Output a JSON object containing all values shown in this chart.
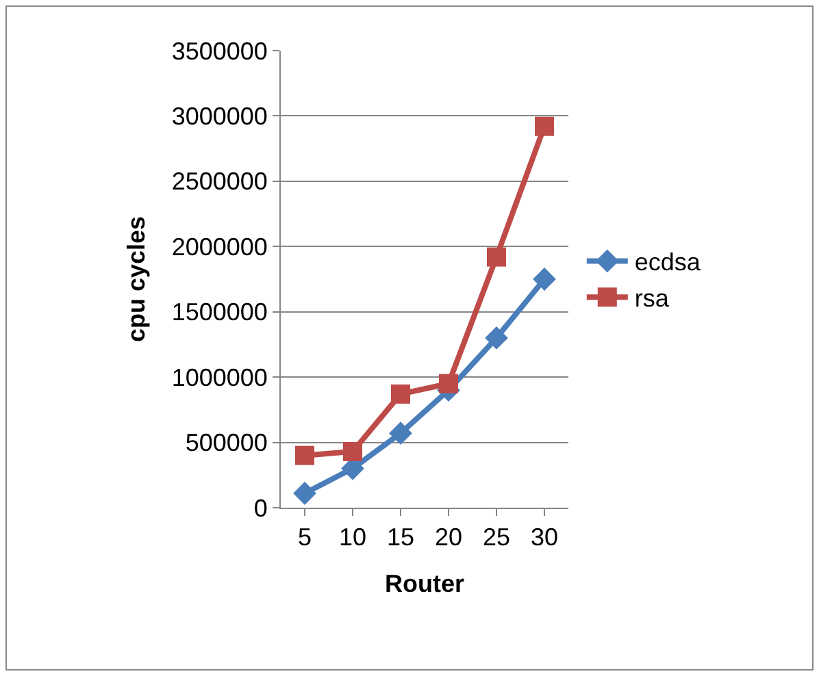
{
  "chart_data": {
    "type": "line",
    "xlabel": "Router",
    "ylabel": "cpu cycles",
    "categories": [
      "5",
      "10",
      "15",
      "20",
      "25",
      "30"
    ],
    "series": [
      {
        "name": "ecdsa",
        "color": "#4a7ebb",
        "marker": "diamond",
        "values": [
          110000,
          300000,
          570000,
          900000,
          1300000,
          1750000
        ]
      },
      {
        "name": "rsa",
        "color": "#be4b48",
        "marker": "square",
        "values": [
          400000,
          430000,
          870000,
          950000,
          1920000,
          2920000
        ]
      }
    ],
    "ylim": [
      0,
      3500000
    ],
    "yticks": [
      0,
      500000,
      1000000,
      1500000,
      2000000,
      2500000,
      3000000,
      3500000
    ],
    "grid": "y",
    "legend": "right",
    "line_style": "solid"
  }
}
